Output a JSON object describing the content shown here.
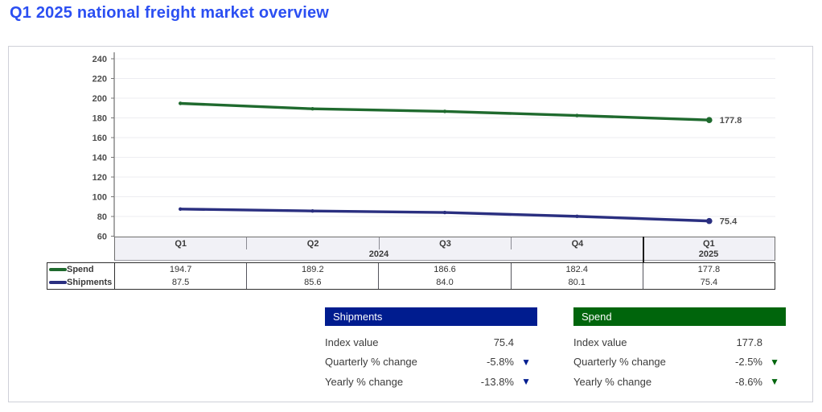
{
  "page_title": "Q1 2025 national freight market overview",
  "colors": {
    "title_blue": "#2b4ff2",
    "spend_line": "#1f6a2e",
    "shipments_line": "#2a2f80",
    "shipments_header_bg": "#001c8f",
    "spend_header_bg": "#00650c",
    "band_bg": "#f1f1f6",
    "grid": "#ededf1"
  },
  "chart_data": {
    "type": "line",
    "categories": [
      "Q1",
      "Q2",
      "Q3",
      "Q4",
      "Q1"
    ],
    "x_group_labels": [
      {
        "label": "2024",
        "span": 4
      },
      {
        "label": "2025",
        "span": 1
      }
    ],
    "series": [
      {
        "name": "Spend",
        "values": [
          194.7,
          189.2,
          186.6,
          182.4,
          177.8
        ],
        "color": "#1f6a2e",
        "end_label": "177.8"
      },
      {
        "name": "Shipments",
        "values": [
          87.5,
          85.6,
          84.0,
          80.1,
          75.4
        ],
        "color": "#2a2f80",
        "end_label": "75.4"
      }
    ],
    "ylim": [
      60,
      240
    ],
    "yticks": [
      240,
      220,
      200,
      180,
      160,
      140,
      120,
      100,
      80,
      60
    ],
    "grid": true,
    "legend_position": "table-left"
  },
  "table": {
    "columns": [
      "Q1",
      "Q2",
      "Q3",
      "Q4",
      "Q1"
    ],
    "year_left": "2024",
    "year_right": "2025",
    "legend": [
      {
        "label": "Spend"
      },
      {
        "label": "Shipments"
      }
    ],
    "rows": [
      {
        "label": "Spend",
        "values": [
          "194.7",
          "189.2",
          "186.6",
          "182.4",
          "177.8"
        ]
      },
      {
        "label": "Shipments",
        "values": [
          "87.5",
          "85.6",
          "84.0",
          "80.1",
          "75.4"
        ]
      }
    ]
  },
  "cards": [
    {
      "title": "Shipments",
      "rows": [
        {
          "label": "Index value",
          "value": "75.4",
          "arrow": ""
        },
        {
          "label": "Quarterly % change",
          "value": "-5.8%",
          "arrow": "▼"
        },
        {
          "label": "Yearly % change",
          "value": "-13.8%",
          "arrow": "▼"
        }
      ]
    },
    {
      "title": "Spend",
      "rows": [
        {
          "label": "Index value",
          "value": "177.8",
          "arrow": ""
        },
        {
          "label": "Quarterly % change",
          "value": "-2.5%",
          "arrow": "▼"
        },
        {
          "label": "Yearly % change",
          "value": "-8.6%",
          "arrow": "▼"
        }
      ]
    }
  ]
}
